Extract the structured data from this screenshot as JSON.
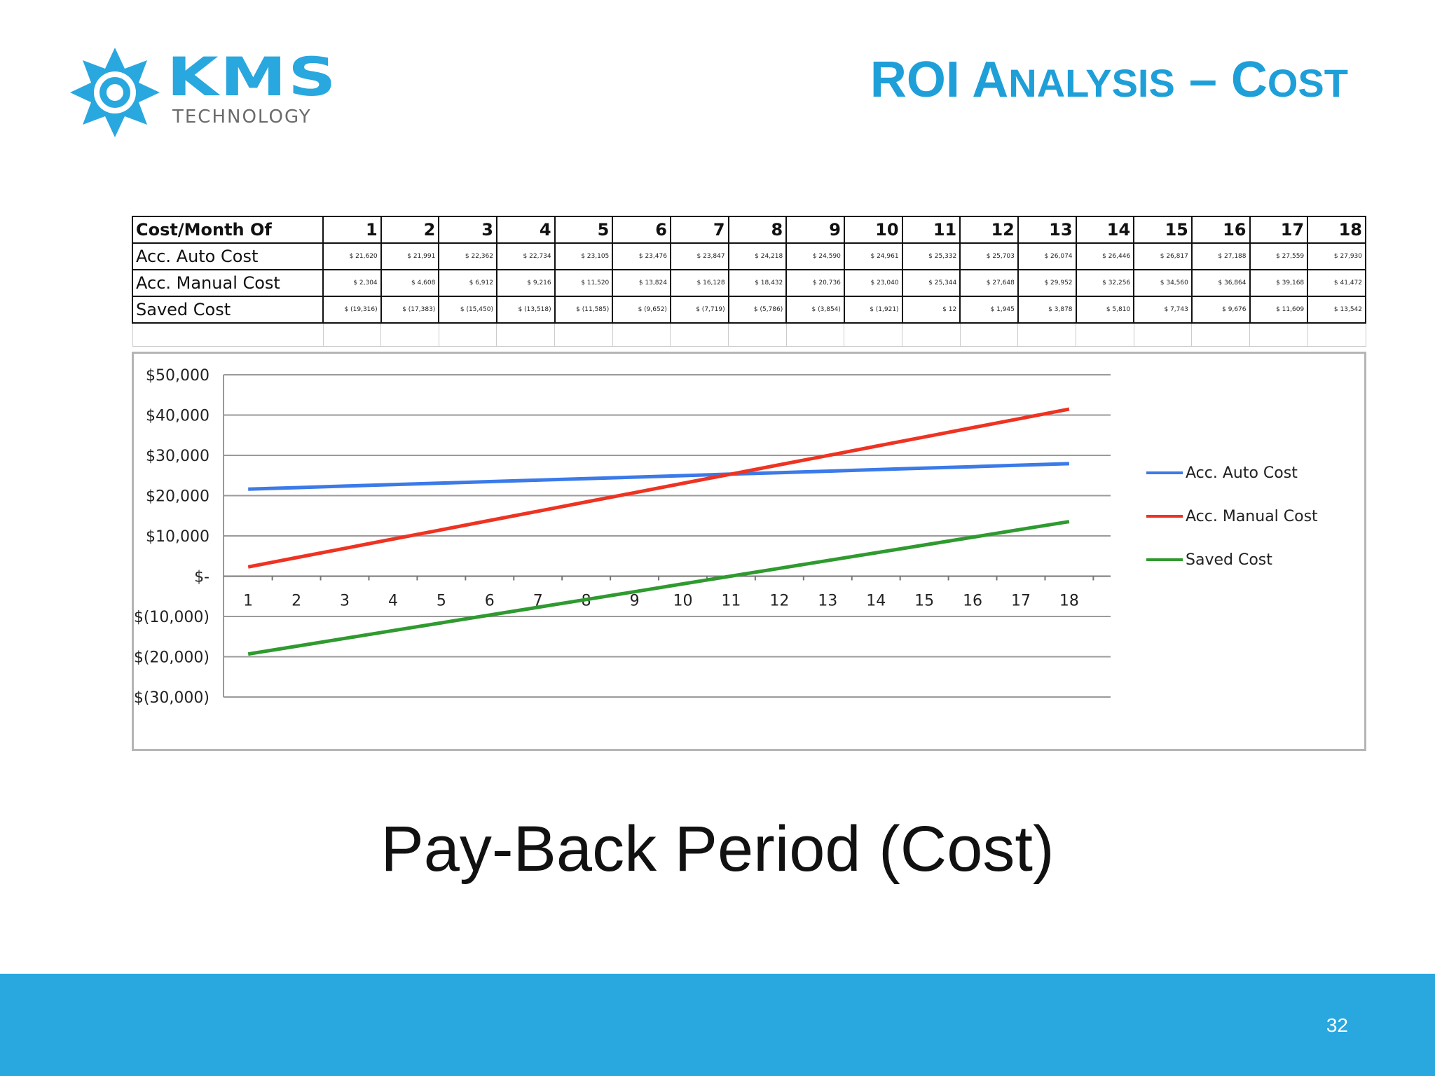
{
  "logo": {
    "word": "KMS",
    "subtitle": "TECHNOLOGY"
  },
  "title": {
    "part1": "ROI A",
    "part2": "NALYSIS",
    "part3": " – C",
    "part4": "OST"
  },
  "table": {
    "header_label": "Cost/Month Of",
    "months": [
      "1",
      "2",
      "3",
      "4",
      "5",
      "6",
      "7",
      "8",
      "9",
      "10",
      "11",
      "12",
      "13",
      "14",
      "15",
      "16",
      "17",
      "18"
    ],
    "rows": [
      {
        "label": "Acc. Auto Cost",
        "cells": [
          "$ 21,620",
          "$ 21,991",
          "$ 22,362",
          "$ 22,734",
          "$ 23,105",
          "$ 23,476",
          "$ 23,847",
          "$ 24,218",
          "$ 24,590",
          "$ 24,961",
          "$ 25,332",
          "$ 25,703",
          "$ 26,074",
          "$ 26,446",
          "$ 26,817",
          "$ 27,188",
          "$ 27,559",
          "$ 27,930"
        ]
      },
      {
        "label": "Acc. Manual Cost",
        "cells": [
          "$ 2,304",
          "$ 4,608",
          "$ 6,912",
          "$ 9,216",
          "$ 11,520",
          "$ 13,824",
          "$ 16,128",
          "$ 18,432",
          "$ 20,736",
          "$ 23,040",
          "$ 25,344",
          "$ 27,648",
          "$ 29,952",
          "$ 32,256",
          "$ 34,560",
          "$ 36,864",
          "$ 39,168",
          "$ 41,472"
        ]
      },
      {
        "label": "Saved Cost",
        "cells": [
          "$ (19,316)",
          "$ (17,383)",
          "$ (15,450)",
          "$ (13,518)",
          "$ (11,585)",
          "$ (9,652)",
          "$ (7,719)",
          "$ (5,786)",
          "$ (3,854)",
          "$ (1,921)",
          "$ 12",
          "$ 1,945",
          "$ 3,878",
          "$ 5,810",
          "$ 7,743",
          "$ 9,676",
          "$ 11,609",
          "$ 13,542"
        ]
      }
    ]
  },
  "chart_data": {
    "type": "line",
    "x": [
      1,
      2,
      3,
      4,
      5,
      6,
      7,
      8,
      9,
      10,
      11,
      12,
      13,
      14,
      15,
      16,
      17,
      18
    ],
    "ylim": [
      -30000,
      50000
    ],
    "y_ticks": [
      50000,
      40000,
      30000,
      20000,
      10000,
      0,
      -10000,
      -20000,
      -30000
    ],
    "y_tick_labels": [
      "$50,000",
      "$40,000",
      "$30,000",
      "$20,000",
      "$10,000",
      "$-",
      "$(10,000)",
      "$(20,000)",
      "$(30,000)"
    ],
    "legend_position": "right",
    "grid": true,
    "series": [
      {
        "name": "Acc. Auto Cost",
        "color": "#3b7ae8",
        "values": [
          21620,
          21991,
          22362,
          22734,
          23105,
          23476,
          23847,
          24218,
          24590,
          24961,
          25332,
          25703,
          26074,
          26446,
          26817,
          27188,
          27559,
          27930
        ]
      },
      {
        "name": "Acc. Manual Cost",
        "color": "#ee3322",
        "values": [
          2304,
          4608,
          6912,
          9216,
          11520,
          13824,
          16128,
          18432,
          20736,
          23040,
          25344,
          27648,
          29952,
          32256,
          34560,
          36864,
          39168,
          41472
        ]
      },
      {
        "name": "Saved Cost",
        "color": "#2f9a2f",
        "values": [
          -19316,
          -17383,
          -15450,
          -13518,
          -11585,
          -9652,
          -7719,
          -5786,
          -3854,
          -1921,
          12,
          1945,
          3878,
          5810,
          7743,
          9676,
          11609,
          13542
        ]
      }
    ]
  },
  "caption": "Pay-Back Period (Cost)",
  "page_number": "32",
  "colors": {
    "brand": "#29a7df",
    "title": "#1e9fd8"
  }
}
